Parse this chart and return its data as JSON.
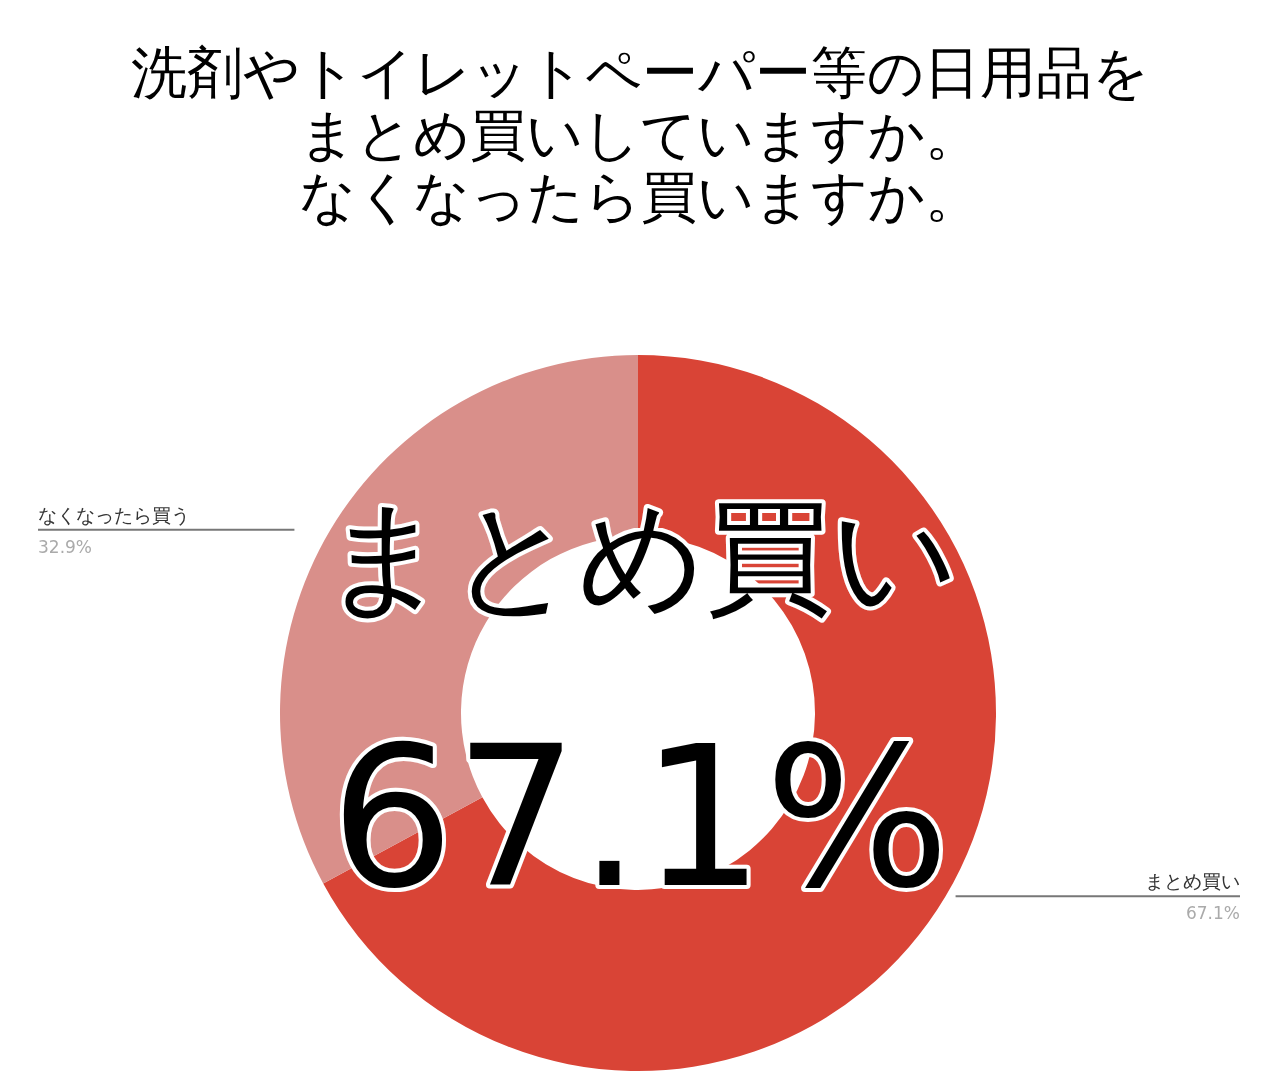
{
  "chart_data": {
    "type": "donut",
    "title": "洗剤やトイレットペーパー等の日用品をまとめ買いしていますか。",
    "subtitle": "なくなったら買いますか。",
    "categories": [
      "まとめ買い",
      "なくなったら買う"
    ],
    "values": [
      67.1,
      32.9
    ],
    "value_labels": [
      "67.1%",
      "32.9%"
    ],
    "colors": [
      "#d94436",
      "#d98f8a"
    ],
    "annotations": [
      "まとめ買い",
      "67.1%"
    ]
  }
}
